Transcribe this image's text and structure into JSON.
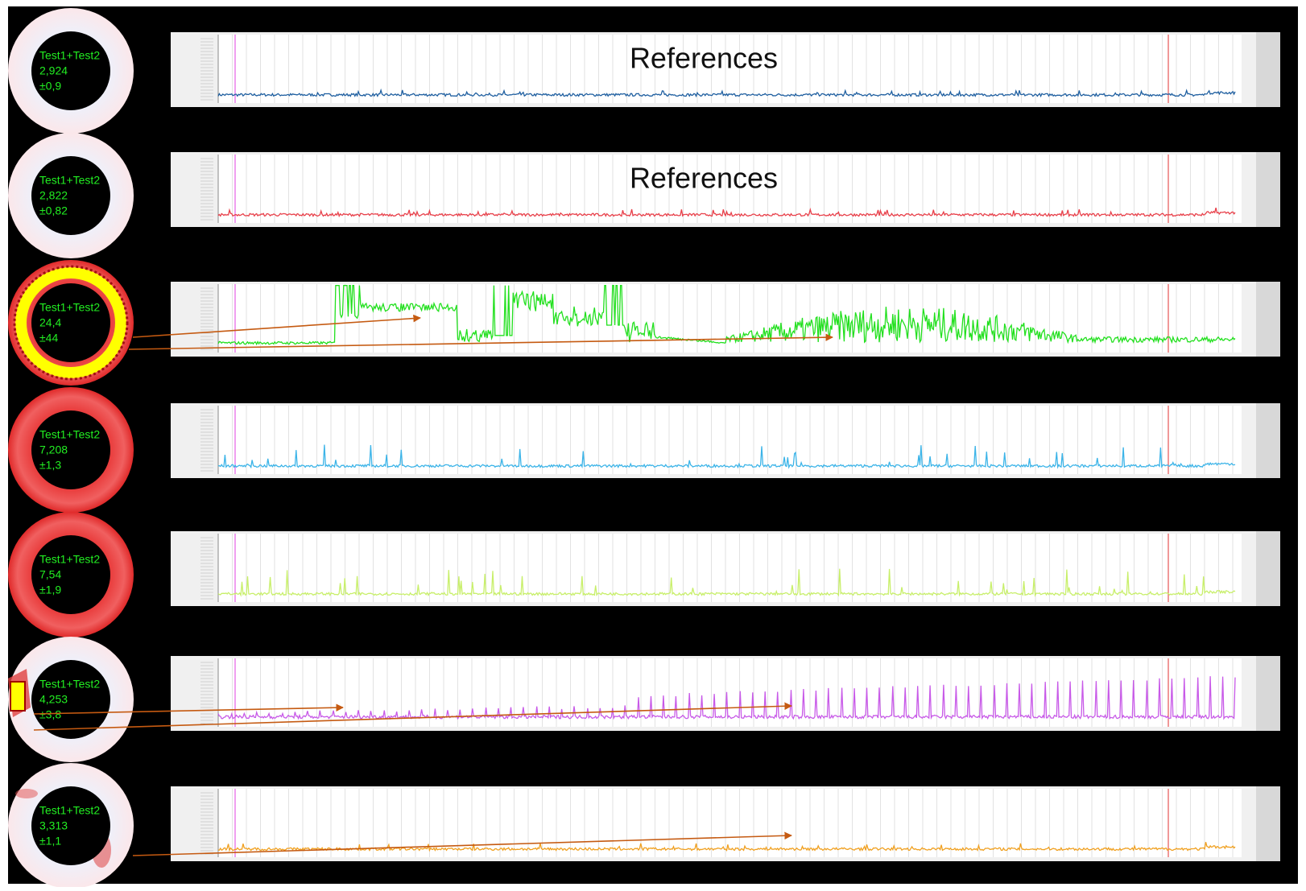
{
  "panels": [
    {
      "ring": {
        "label": "Test1+Test2",
        "value": "2,924",
        "error": "±0,9"
      },
      "caption": "References",
      "color": "#1f5fa0"
    },
    {
      "ring": {
        "label": "Test1+Test2",
        "value": "2,822",
        "error": "±0,82"
      },
      "caption": "References",
      "color": "#e8404a"
    },
    {
      "ring": {
        "label": "Test1+Test2",
        "value": "24,4",
        "error": "±44"
      },
      "color": "#22e01e"
    },
    {
      "ring": {
        "label": "Test1+Test2",
        "value": "7,208",
        "error": "±1,3"
      },
      "color": "#3cb4e8"
    },
    {
      "ring": {
        "label": "Test1+Test2",
        "value": "7,54",
        "error": "±1,9"
      },
      "color": "#c8ef6a"
    },
    {
      "ring": {
        "label": "Test1+Test2",
        "value": "4,253",
        "error": "±3,8"
      },
      "color": "#c85ae8"
    },
    {
      "ring": {
        "label": "Test1+Test2",
        "value": "3,313",
        "error": "±1,1"
      },
      "color": "#f0a020"
    }
  ]
}
